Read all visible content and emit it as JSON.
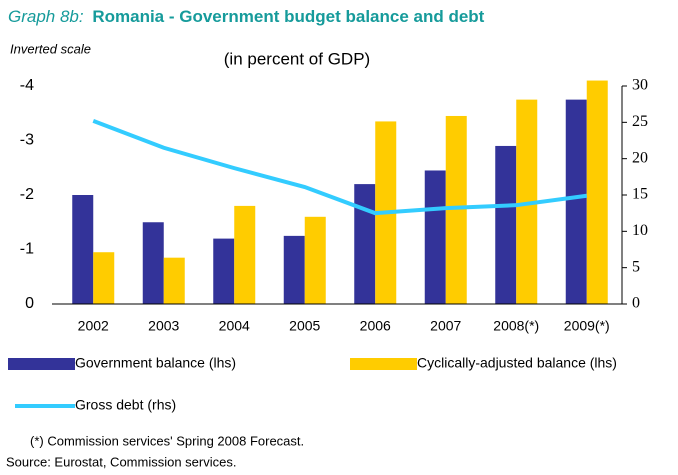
{
  "chart_data": {
    "type": "bar",
    "title_label": "Graph 8b:",
    "title": "Romania - Government budget balance and debt",
    "subtitle": "(in percent of GDP)",
    "annotation": "Inverted scale",
    "notes": [
      "(*) Commission services' Spring 2008 Forecast.",
      "Source: Eurostat, Commission services."
    ],
    "categories": [
      "2002",
      "2003",
      "2004",
      "2005",
      "2006",
      "2007",
      "2008(*)",
      "2009(*)"
    ],
    "series": [
      {
        "name": "Government balance (lhs)",
        "type": "bar",
        "color": "#333399",
        "values": [
          -2.0,
          -1.5,
          -1.2,
          -1.25,
          -2.2,
          -2.45,
          -2.9,
          -3.75
        ]
      },
      {
        "name": "Cyclically-adjusted balance (lhs)",
        "type": "bar",
        "color": "#ffcc00",
        "values": [
          -0.95,
          -0.85,
          -1.8,
          -1.6,
          -3.35,
          -3.45,
          -3.75,
          -4.1
        ]
      },
      {
        "name": "Gross debt (rhs)",
        "type": "line",
        "axis": "y2",
        "color": "#33ccff",
        "values": [
          25.2,
          21.5,
          18.7,
          16.1,
          12.5,
          13.2,
          13.6,
          14.9
        ]
      }
    ],
    "ylim": [
      0,
      -4
    ],
    "yticks": [
      0,
      -1,
      -2,
      -3,
      -4
    ],
    "y2lim": [
      0,
      30
    ],
    "y2ticks": [
      0,
      5,
      10,
      15,
      20,
      25,
      30
    ],
    "grid": false,
    "legend": "bottom"
  }
}
